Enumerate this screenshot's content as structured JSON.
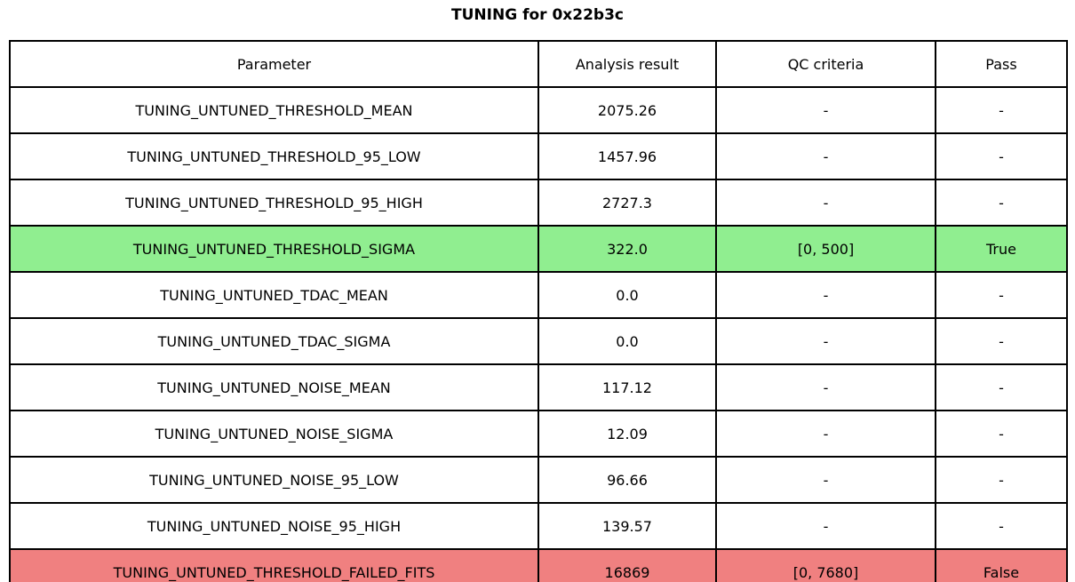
{
  "colors": {
    "pass_row": "#90ee90",
    "fail_row": "#f08080",
    "border": "#000000",
    "background": "#ffffff"
  },
  "chart_data": {
    "type": "table",
    "title": "TUNING for 0x22b3c",
    "columns": [
      "Parameter",
      "Analysis result",
      "QC criteria",
      "Pass"
    ],
    "rows": [
      {
        "parameter": "TUNING_UNTUNED_THRESHOLD_MEAN",
        "analysis_result": "2075.26",
        "qc_criteria": "-",
        "pass": "-",
        "status": "default"
      },
      {
        "parameter": "TUNING_UNTUNED_THRESHOLD_95_LOW",
        "analysis_result": "1457.96",
        "qc_criteria": "-",
        "pass": "-",
        "status": "default"
      },
      {
        "parameter": "TUNING_UNTUNED_THRESHOLD_95_HIGH",
        "analysis_result": "2727.3",
        "qc_criteria": "-",
        "pass": "-",
        "status": "default"
      },
      {
        "parameter": "TUNING_UNTUNED_THRESHOLD_SIGMA",
        "analysis_result": "322.0",
        "qc_criteria": "[0, 500]",
        "pass": "True",
        "status": "pass"
      },
      {
        "parameter": "TUNING_UNTUNED_TDAC_MEAN",
        "analysis_result": "0.0",
        "qc_criteria": "-",
        "pass": "-",
        "status": "default"
      },
      {
        "parameter": "TUNING_UNTUNED_TDAC_SIGMA",
        "analysis_result": "0.0",
        "qc_criteria": "-",
        "pass": "-",
        "status": "default"
      },
      {
        "parameter": "TUNING_UNTUNED_NOISE_MEAN",
        "analysis_result": "117.12",
        "qc_criteria": "-",
        "pass": "-",
        "status": "default"
      },
      {
        "parameter": "TUNING_UNTUNED_NOISE_SIGMA",
        "analysis_result": "12.09",
        "qc_criteria": "-",
        "pass": "-",
        "status": "default"
      },
      {
        "parameter": "TUNING_UNTUNED_NOISE_95_LOW",
        "analysis_result": "96.66",
        "qc_criteria": "-",
        "pass": "-",
        "status": "default"
      },
      {
        "parameter": "TUNING_UNTUNED_NOISE_95_HIGH",
        "analysis_result": "139.57",
        "qc_criteria": "-",
        "pass": "-",
        "status": "default"
      },
      {
        "parameter": "TUNING_UNTUNED_THRESHOLD_FAILED_FITS",
        "analysis_result": "16869",
        "qc_criteria": "[0, 7680]",
        "pass": "False",
        "status": "fail"
      }
    ]
  }
}
